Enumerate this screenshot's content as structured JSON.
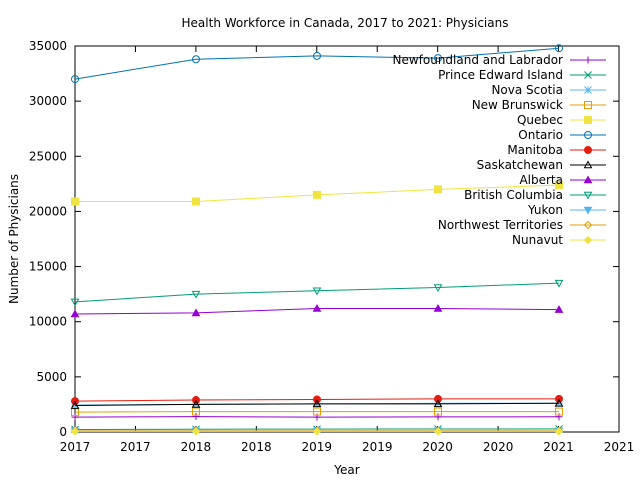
{
  "chart_data": {
    "type": "line",
    "title": "Health Workforce in Canada, 2017 to 2021: Physicians",
    "xlabel": "Year",
    "ylabel": "Number of Physicians",
    "xlim": [
      2017,
      2021
    ],
    "ylim": [
      0,
      35000
    ],
    "x_tick_labels": [
      "2017",
      "2017",
      "2018",
      "2018",
      "2019",
      "2019",
      "2020",
      "2020",
      "2021",
      "2021"
    ],
    "y_ticks": [
      0,
      5000,
      10000,
      15000,
      20000,
      25000,
      30000,
      35000
    ],
    "grid": false,
    "legend_position": "top-right",
    "x": [
      2017,
      2018,
      2019,
      2020,
      2021
    ],
    "series": [
      {
        "name": "Newfoundland and Labrador",
        "color": "#9400d3",
        "marker": "plus",
        "values": [
          1350,
          1400,
          1350,
          1370,
          1380
        ]
      },
      {
        "name": "Prince Edward Island",
        "color": "#009e73",
        "marker": "cross",
        "values": [
          230,
          250,
          260,
          270,
          280
        ]
      },
      {
        "name": "Nova Scotia",
        "color": "#56b4e9",
        "marker": "star",
        "values": [
          2450,
          2500,
          2550,
          2600,
          2600
        ]
      },
      {
        "name": "New Brunswick",
        "color": "#e69f00",
        "marker": "square",
        "values": [
          1800,
          1850,
          1850,
          1850,
          1850
        ]
      },
      {
        "name": "Quebec",
        "color": "#f0e442",
        "marker": "filled-square",
        "values": [
          20900,
          20900,
          21500,
          22000,
          22400
        ]
      },
      {
        "name": "Ontario",
        "color": "#0072b2",
        "marker": "circle",
        "values": [
          32000,
          33800,
          34100,
          33900,
          34800
        ]
      },
      {
        "name": "Manitoba",
        "color": "#e51e10",
        "marker": "filled-circle",
        "values": [
          2800,
          2900,
          2950,
          3000,
          3000
        ]
      },
      {
        "name": "Saskatchewan",
        "color": "#000000",
        "marker": "triangle",
        "values": [
          2400,
          2500,
          2550,
          2550,
          2600
        ]
      },
      {
        "name": "Alberta",
        "color": "#9400d3",
        "marker": "filled-triangle",
        "values": [
          10700,
          10800,
          11200,
          11200,
          11100
        ]
      },
      {
        "name": "British Columbia",
        "color": "#009e73",
        "marker": "triangle-down",
        "values": [
          11800,
          12500,
          12800,
          13100,
          13500
        ]
      },
      {
        "name": "Yukon",
        "color": "#56b4e9",
        "marker": "filled-triangle-down",
        "values": [
          100,
          100,
          100,
          100,
          100
        ]
      },
      {
        "name": "Northwest Territories",
        "color": "#e69f00",
        "marker": "diamond",
        "values": [
          100,
          100,
          100,
          100,
          100
        ]
      },
      {
        "name": "Nunavut",
        "color": "#f0e442",
        "marker": "filled-diamond",
        "values": [
          50,
          50,
          50,
          50,
          50
        ]
      }
    ]
  }
}
